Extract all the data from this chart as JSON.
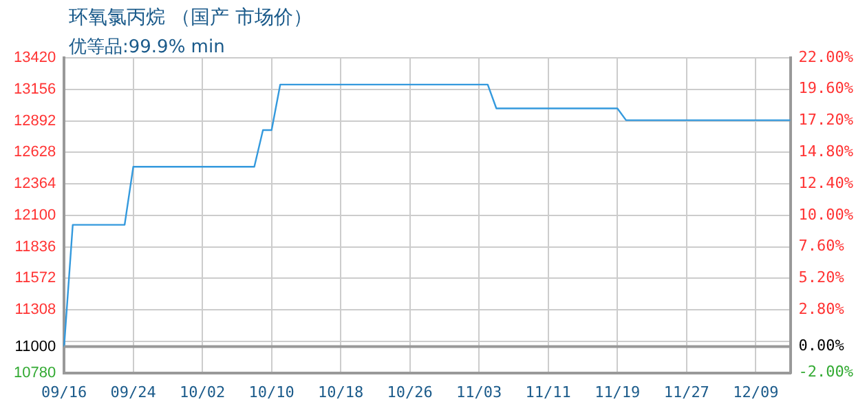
{
  "chart_data": {
    "type": "line",
    "title": "环氧氯丙烷 （国产 市场价）",
    "subtitle": "优等品:99.9% min",
    "categories": [
      "09/16",
      null,
      null,
      null,
      null,
      null,
      null,
      null,
      "09/24",
      null,
      null,
      null,
      null,
      null,
      null,
      null,
      "10/02",
      null,
      null,
      null,
      null,
      null,
      null,
      null,
      "10/10",
      null,
      null,
      null,
      null,
      null,
      null,
      null,
      "10/18",
      null,
      null,
      null,
      null,
      null,
      null,
      null,
      "10/26",
      null,
      null,
      null,
      null,
      null,
      null,
      null,
      "11/03",
      null,
      null,
      null,
      null,
      null,
      null,
      null,
      "11/11",
      null,
      null,
      null,
      null,
      null,
      null,
      null,
      "11/19",
      null,
      null,
      null,
      null,
      null,
      null,
      null,
      "11/27",
      null,
      null,
      null,
      null,
      null,
      null,
      null,
      "12/09",
      null,
      null,
      null,
      null
    ],
    "series": [
      {
        "color": "#3399dd",
        "values": [
          11000,
          12020,
          12020,
          12020,
          12020,
          12020,
          12020,
          12020,
          12507,
          12507,
          12507,
          12507,
          12507,
          12507,
          12507,
          12507,
          12507,
          12507,
          12507,
          12507,
          12507,
          12507,
          12507,
          12814,
          12814,
          13196,
          13196,
          13196,
          13196,
          13196,
          13196,
          13196,
          13196,
          13196,
          13196,
          13196,
          13196,
          13196,
          13196,
          13196,
          13196,
          13196,
          13196,
          13196,
          13196,
          13196,
          13196,
          13196,
          13196,
          13196,
          12996,
          12996,
          12996,
          12996,
          12996,
          12996,
          12996,
          12996,
          12996,
          12996,
          12996,
          12996,
          12996,
          12996,
          12996,
          12897,
          12897,
          12897,
          12897,
          12897,
          12897,
          12897,
          12897,
          12897,
          12897,
          12897,
          12897,
          12897,
          12897,
          12897,
          12897,
          12897,
          12897,
          12897,
          12897
        ]
      }
    ],
    "ylim": [
      10780,
      13420
    ],
    "yticks": [
      10780,
      11000,
      {
        "value": 11044,
        "label": null
      },
      11308,
      11572,
      11836,
      12100,
      12364,
      12628,
      12892,
      13156,
      13420
    ],
    "y2lim": [
      -2,
      22
    ],
    "y2ticks": [
      {
        "value": -2,
        "label": "-2.00%"
      },
      {
        "value": 0,
        "label": "0.00%"
      },
      {
        "value": 2.8,
        "label": "2.80%"
      },
      {
        "value": 5.2,
        "label": "5.20%"
      },
      {
        "value": 7.6,
        "label": "7.60%"
      },
      {
        "value": 10,
        "label": "10.00%"
      },
      {
        "value": 12.4,
        "label": "12.40%"
      },
      {
        "value": 14.8,
        "label": "14.80%"
      },
      {
        "value": 17.2,
        "label": "17.20%"
      },
      {
        "value": 19.6,
        "label": "19.60%"
      },
      {
        "value": 22,
        "label": "22.00%"
      }
    ],
    "ref_lines": [
      {
        "axis": "y",
        "value": 11000,
        "color": "#999999"
      }
    ],
    "grid": true,
    "marker": "none",
    "legend": false
  }
}
